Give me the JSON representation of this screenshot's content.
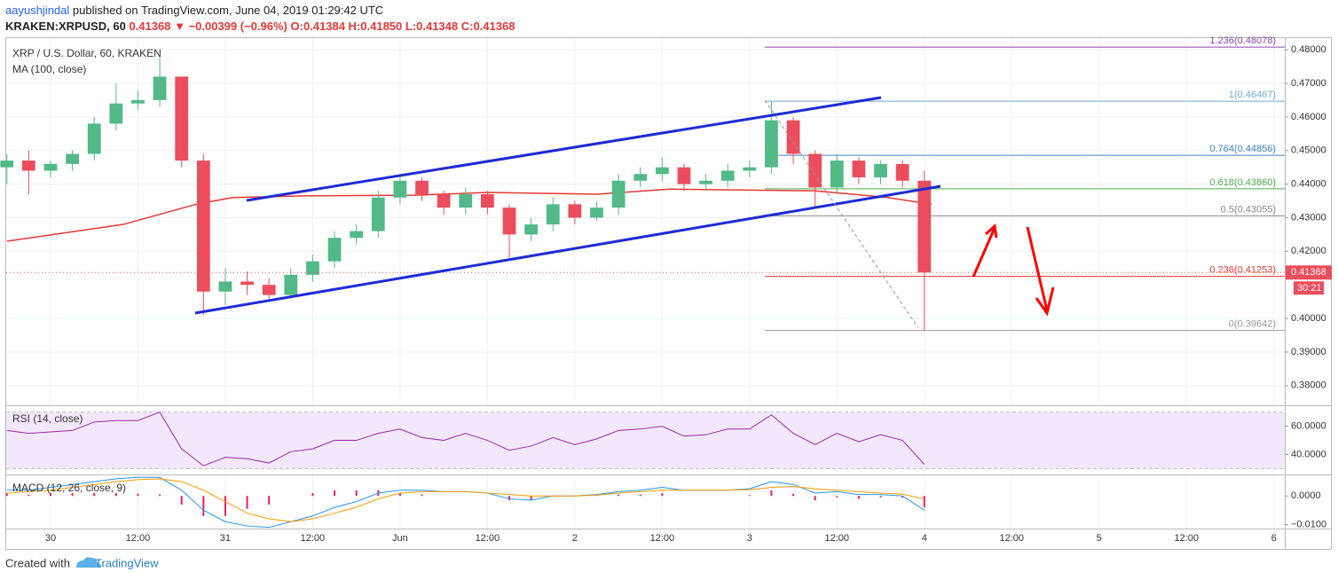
{
  "header": {
    "user": "aayushjindal",
    "published": "published on TradingView.com, June 04, 2019 01:29:42 UTC",
    "symbol": "KRAKEN:XRPUSD, 60",
    "price": "0.41368",
    "arrow": "▼",
    "change": "−0.00399 (−0.96%)",
    "ohlc": "O:0.41384 H:0.41850 L:0.41348 C:0.41368"
  },
  "footer": {
    "created": "Created with",
    "brand": "TradingView"
  },
  "chart_data": {
    "type": "candlestick",
    "title": "XRP / U.S. Dollar, 60, KRAKEN",
    "up_color": "#53b987",
    "down_color": "#eb4d5c",
    "candles": {
      "x": [
        -6,
        -3,
        0,
        3,
        6,
        9,
        12,
        15,
        18,
        21,
        24,
        27,
        30,
        33,
        36,
        39,
        42,
        45,
        48,
        51,
        54,
        57,
        60,
        63,
        66,
        69,
        72,
        75,
        78,
        81,
        84,
        87,
        90,
        93,
        96,
        99,
        102,
        105,
        108,
        111,
        114,
        117,
        120
      ],
      "open": [
        0.445,
        0.447,
        0.444,
        0.446,
        0.449,
        0.458,
        0.464,
        0.465,
        0.472,
        0.447,
        0.408,
        0.411,
        0.41,
        0.407,
        0.413,
        0.417,
        0.424,
        0.426,
        0.436,
        0.441,
        0.437,
        0.433,
        0.437,
        0.433,
        0.425,
        0.428,
        0.434,
        0.43,
        0.433,
        0.441,
        0.443,
        0.445,
        0.44,
        0.441,
        0.444,
        0.445,
        0.459,
        0.449,
        0.439,
        0.447,
        0.442,
        0.446,
        0.441
      ],
      "high": [
        0.449,
        0.45,
        0.447,
        0.45,
        0.46,
        0.47,
        0.468,
        0.478,
        0.472,
        0.449,
        0.415,
        0.414,
        0.412,
        0.415,
        0.419,
        0.426,
        0.428,
        0.438,
        0.443,
        0.442,
        0.438,
        0.439,
        0.438,
        0.434,
        0.43,
        0.436,
        0.435,
        0.435,
        0.443,
        0.445,
        0.448,
        0.446,
        0.443,
        0.446,
        0.447,
        0.4647,
        0.46,
        0.45,
        0.449,
        0.448,
        0.447,
        0.447,
        0.444
      ],
      "low": [
        0.44,
        0.437,
        0.442,
        0.444,
        0.447,
        0.456,
        0.462,
        0.463,
        0.445,
        0.401,
        0.404,
        0.407,
        0.405,
        0.406,
        0.411,
        0.415,
        0.422,
        0.424,
        0.434,
        0.435,
        0.431,
        0.431,
        0.431,
        0.418,
        0.423,
        0.426,
        0.428,
        0.429,
        0.431,
        0.439,
        0.441,
        0.438,
        0.438,
        0.439,
        0.442,
        0.443,
        0.446,
        0.433,
        0.437,
        0.44,
        0.44,
        0.439,
        0.39642
      ],
      "close": [
        0.447,
        0.444,
        0.446,
        0.449,
        0.458,
        0.464,
        0.465,
        0.472,
        0.447,
        0.408,
        0.411,
        0.41,
        0.407,
        0.413,
        0.417,
        0.424,
        0.426,
        0.436,
        0.441,
        0.437,
        0.433,
        0.437,
        0.433,
        0.425,
        0.428,
        0.434,
        0.43,
        0.433,
        0.441,
        0.443,
        0.445,
        0.44,
        0.441,
        0.444,
        0.445,
        0.459,
        0.449,
        0.439,
        0.447,
        0.442,
        0.446,
        0.441,
        0.4137
      ]
    },
    "ma": {
      "name": "MA (100, close)",
      "color": "#e53935",
      "x": [
        -6,
        10,
        20,
        25,
        35,
        50,
        60,
        75,
        85,
        105,
        115,
        121
      ],
      "values": [
        0.423,
        0.428,
        0.434,
        0.436,
        0.4365,
        0.4367,
        0.4375,
        0.437,
        0.4385,
        0.438,
        0.436,
        0.434
      ]
    },
    "xlim": [
      -6.09,
      169.5
    ],
    "xticks": [
      {
        "value": 0,
        "label": "30"
      },
      {
        "value": 12,
        "label": "12:00"
      },
      {
        "value": 24,
        "label": "31"
      },
      {
        "value": 36,
        "label": "12:00"
      },
      {
        "value": 48,
        "label": "Jun"
      },
      {
        "value": 60,
        "label": "12:00"
      },
      {
        "value": 72,
        "label": "2"
      },
      {
        "value": 84,
        "label": "12:00"
      },
      {
        "value": 96,
        "label": "3"
      },
      {
        "value": 108,
        "label": "12:00"
      },
      {
        "value": 120,
        "label": "4"
      },
      {
        "value": 132,
        "label": "12:00"
      },
      {
        "value": 144,
        "label": "5"
      },
      {
        "value": 156,
        "label": "12:00"
      },
      {
        "value": 168,
        "label": "6"
      }
    ],
    "ylim": [
      0.37441,
      0.48346
    ],
    "yticks": [
      {
        "value": 0.48,
        "label": "0.48000"
      },
      {
        "value": 0.47,
        "label": "0.47000"
      },
      {
        "value": 0.46,
        "label": "0.46000"
      },
      {
        "value": 0.45,
        "label": "0.45000"
      },
      {
        "value": 0.44,
        "label": "0.44000"
      },
      {
        "value": 0.43,
        "label": "0.43000"
      },
      {
        "value": 0.42,
        "label": "0.42000"
      },
      {
        "value": 0.4,
        "label": "0.40000"
      },
      {
        "value": 0.39,
        "label": "0.39000"
      },
      {
        "value": 0.38,
        "label": "0.38000"
      }
    ],
    "grid": true,
    "fib": [
      {
        "label": "1.236(0.48078)",
        "value": 0.48078,
        "color": "#8e44ad"
      },
      {
        "label": "1(0.46467)",
        "value": 0.46467,
        "color": "#6fa8dc"
      },
      {
        "label": "0.764(0.44856)",
        "value": 0.44856,
        "color": "#3d85c6"
      },
      {
        "label": "0.618(0.43860)",
        "value": 0.4386,
        "color": "#4caf50"
      },
      {
        "label": "0.5(0.43055)",
        "value": 0.43055,
        "color": "#888888"
      },
      {
        "label": "0.236(0.41253)",
        "value": 0.41253,
        "color": "#e53935"
      },
      {
        "label": "0(0.39642)",
        "value": 0.39642,
        "color": "#999999"
      }
    ],
    "last": {
      "value": 0.41368,
      "label": "0.41368"
    },
    "countdown": "30:21",
    "rsi": {
      "title": "RSI (14, close)",
      "color": "#9c27b0",
      "ylim": [
        26.5,
        74.2
      ],
      "band": [
        30,
        70
      ],
      "yticks": [
        {
          "value": 60,
          "label": "60.0000"
        },
        {
          "value": 40,
          "label": "40.0000"
        }
      ],
      "values": [
        57,
        55,
        56,
        57,
        63,
        64,
        64,
        70,
        44,
        32,
        38,
        37,
        34,
        42,
        44,
        50,
        50,
        55,
        58,
        52,
        50,
        55,
        50,
        43,
        46,
        52,
        47,
        51,
        57,
        58,
        60,
        53,
        54,
        58,
        58,
        68,
        55,
        47,
        55,
        49,
        54,
        50,
        33
      ]
    },
    "macd": {
      "title": "MACD (12, 26, close, 9)",
      "ylim": [
        -0.0111,
        0.0072
      ],
      "yticks": [
        {
          "value": 0,
          "label": "0.0000"
        },
        {
          "value": -0.01,
          "label": "−0.0100"
        }
      ],
      "macd_color": "#2196f3",
      "signal_color": "#ff9800",
      "hist_color": "#e91e63",
      "macd": [
        0.002,
        0.002,
        0.003,
        0.004,
        0.005,
        0.006,
        0.0065,
        0.0065,
        0.002,
        -0.005,
        -0.009,
        -0.0105,
        -0.011,
        -0.009,
        -0.007,
        -0.004,
        -0.002,
        0.001,
        0.002,
        0.002,
        0.0015,
        0.0015,
        0.001,
        -0.001,
        -0.0015,
        0,
        0,
        0.0005,
        0.0015,
        0.002,
        0.003,
        0.002,
        0.002,
        0.002,
        0.0025,
        0.005,
        0.004,
        0.001,
        0.0015,
        0.0005,
        0.0005,
        0,
        -0.005
      ],
      "signal": [
        0.001,
        0.0015,
        0.002,
        0.003,
        0.004,
        0.005,
        0.0057,
        0.006,
        0.005,
        0.002,
        -0.002,
        -0.006,
        -0.008,
        -0.009,
        -0.008,
        -0.006,
        -0.004,
        -0.001,
        0.001,
        0.0015,
        0.0015,
        0.0015,
        0.001,
        0.0005,
        0,
        0,
        0,
        0.0003,
        0.001,
        0.0015,
        0.002,
        0.002,
        0.002,
        0.002,
        0.0022,
        0.003,
        0.0033,
        0.0025,
        0.002,
        0.0015,
        0.001,
        0.0006,
        -0.001
      ],
      "histogram": [
        0.001,
        0.0005,
        0.001,
        0.001,
        0.001,
        0.001,
        0.0008,
        0.0005,
        -0.003,
        -0.007,
        -0.007,
        -0.0045,
        -0.003,
        0,
        0.001,
        0.002,
        0.002,
        0.002,
        0.001,
        0.0005,
        0,
        0,
        0,
        -0.0015,
        -0.0015,
        0,
        0,
        0.0002,
        0.0005,
        0.0005,
        0.001,
        0,
        0,
        0,
        0.0003,
        0.002,
        0.0007,
        -0.0015,
        -0.0005,
        -0.001,
        -0.0005,
        -0.0006,
        -0.004
      ]
    }
  }
}
